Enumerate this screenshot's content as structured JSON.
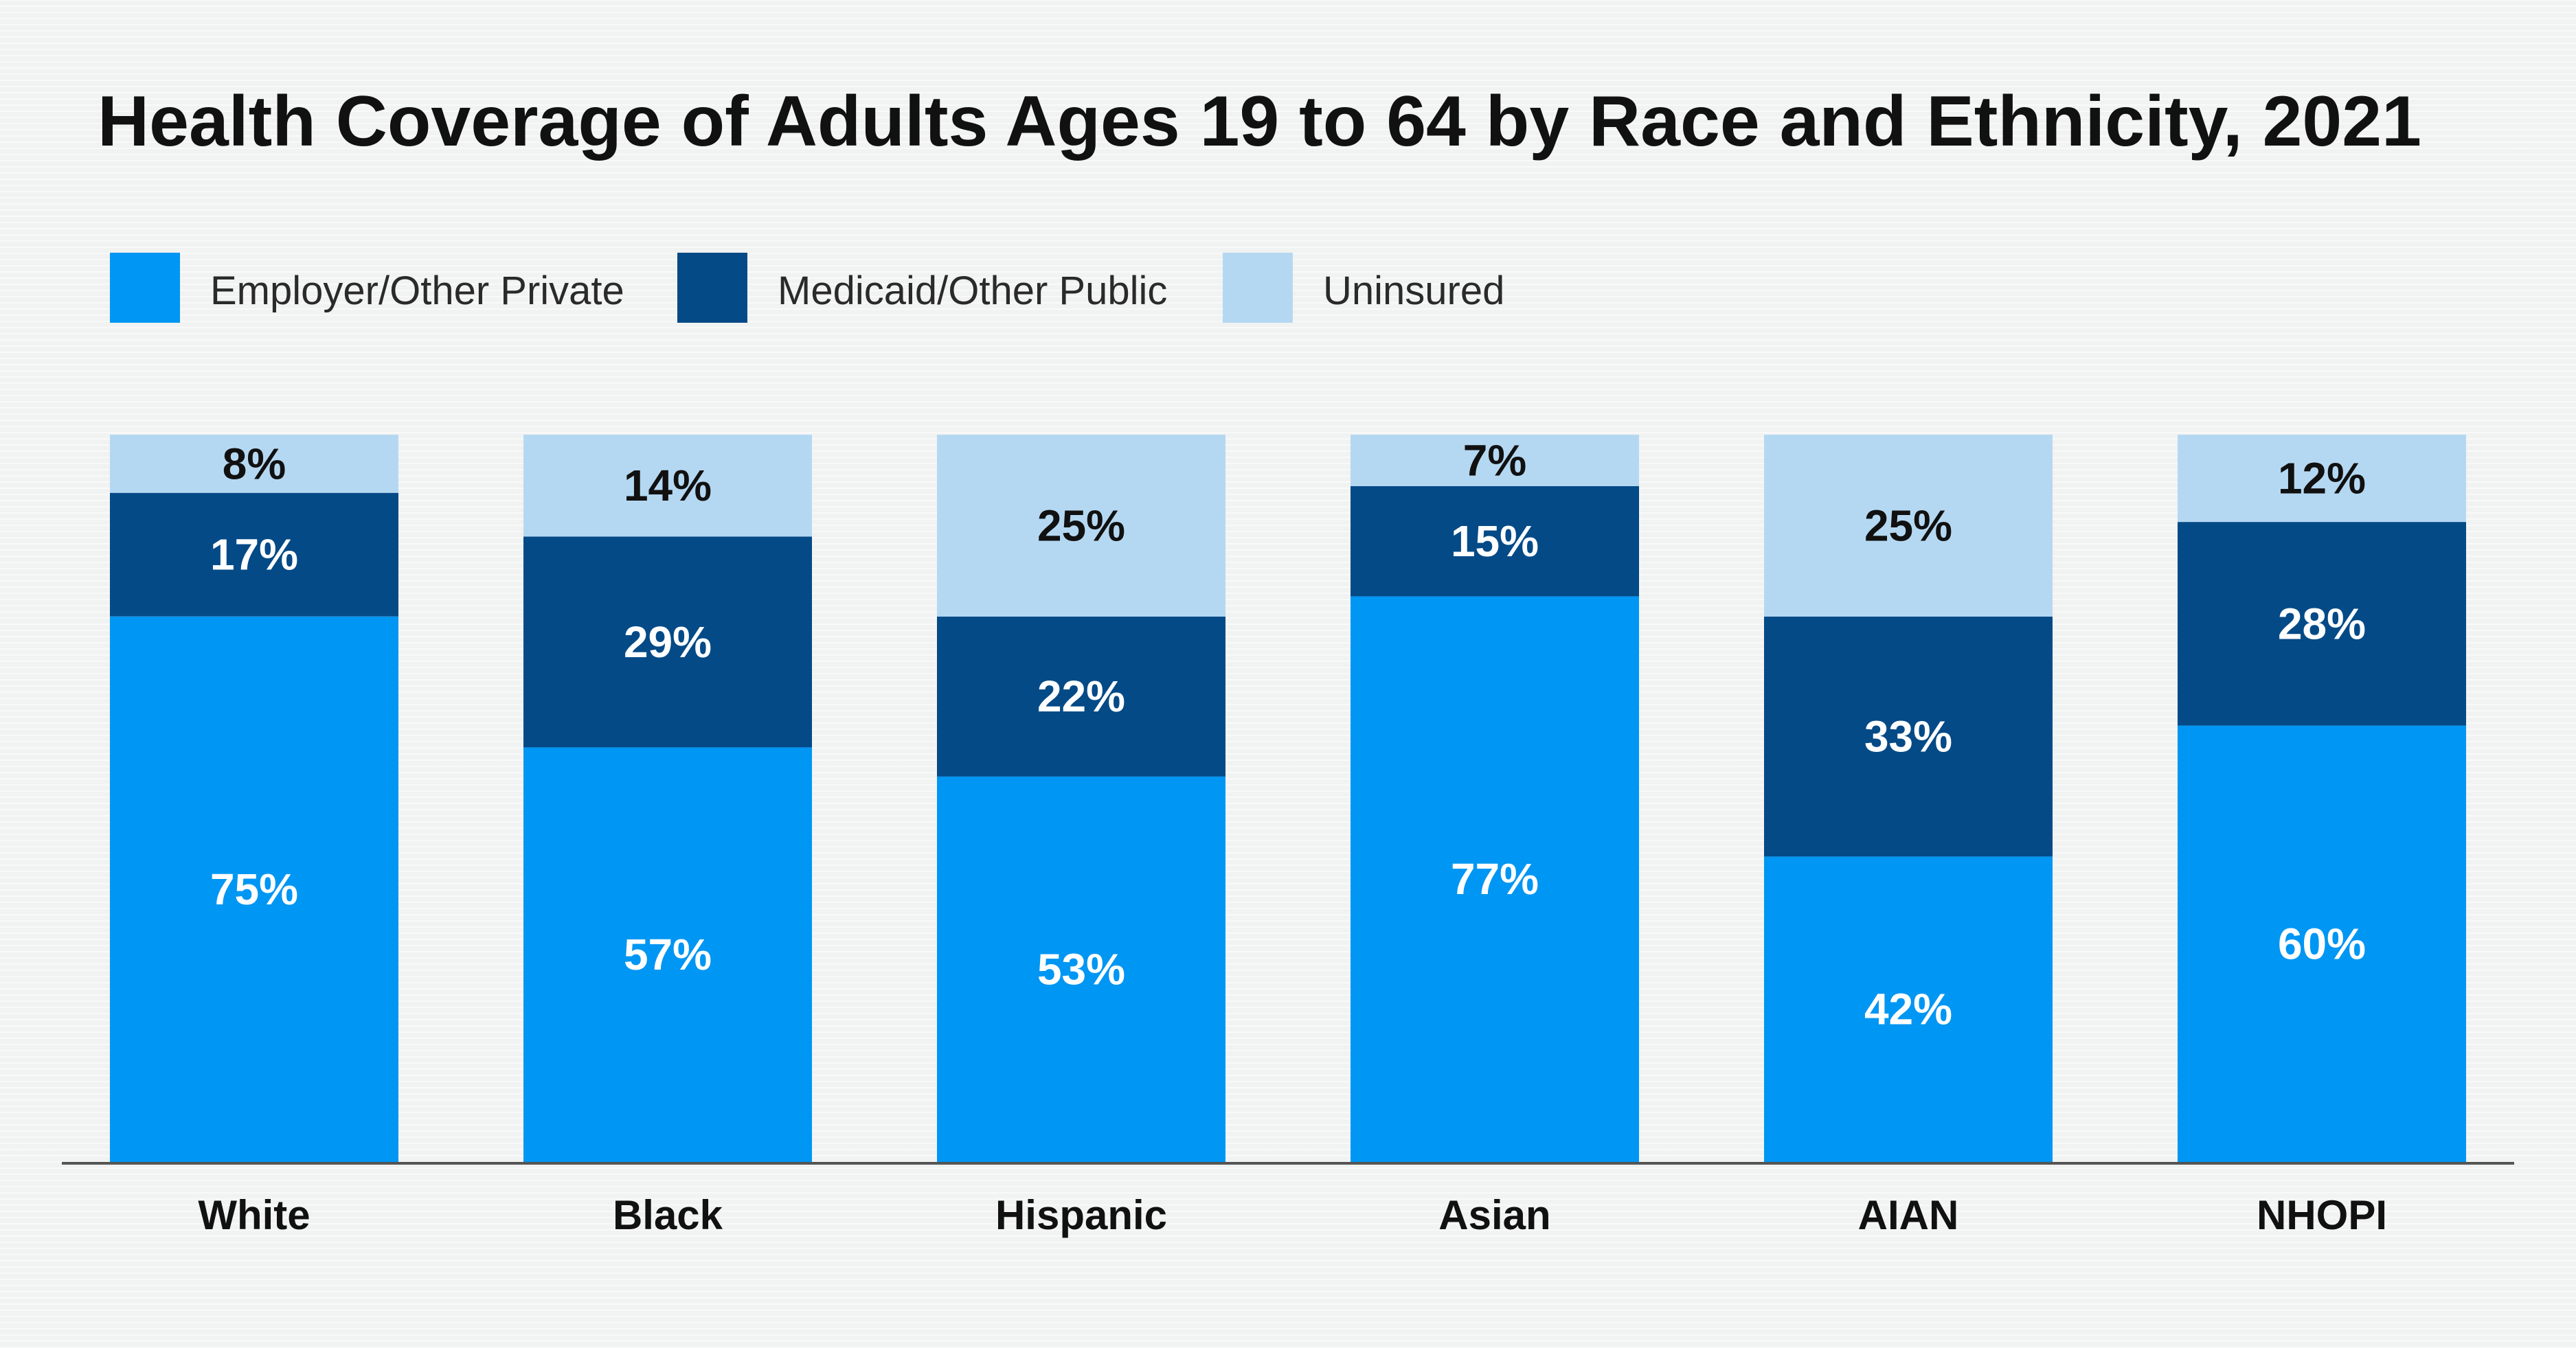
{
  "chart_data": {
    "type": "bar",
    "stacked": true,
    "title": "Health Coverage of Adults Ages 19 to 64 by Race and Ethnicity, 2021",
    "categories": [
      "White",
      "Black",
      "Hispanic",
      "Asian",
      "AIAN",
      "NHOPI"
    ],
    "series": [
      {
        "name": "Employer/Other Private",
        "color": "#0096f3",
        "label_color": "#ffffff",
        "values": [
          75,
          57,
          53,
          77,
          42,
          60
        ],
        "labels": [
          "75%",
          "57%",
          "53%",
          "77%",
          "42%",
          "60%"
        ]
      },
      {
        "name": "Medicaid/Other Public",
        "color": "#044a87",
        "label_color": "#ffffff",
        "values": [
          17,
          29,
          22,
          15,
          33,
          28
        ],
        "labels": [
          "17%",
          "29%",
          "22%",
          "15%",
          "33%",
          "28%"
        ]
      },
      {
        "name": "Uninsured",
        "color": "#b5d8f2",
        "label_color": "#111111",
        "values": [
          8,
          14,
          25,
          7,
          25,
          12
        ],
        "labels": [
          "8%",
          "14%",
          "25%",
          "7%",
          "25%",
          "12%"
        ]
      }
    ],
    "ylim": [
      0,
      100
    ],
    "legend_position": "top-left",
    "grid": false,
    "xlabel": "",
    "ylabel": ""
  }
}
